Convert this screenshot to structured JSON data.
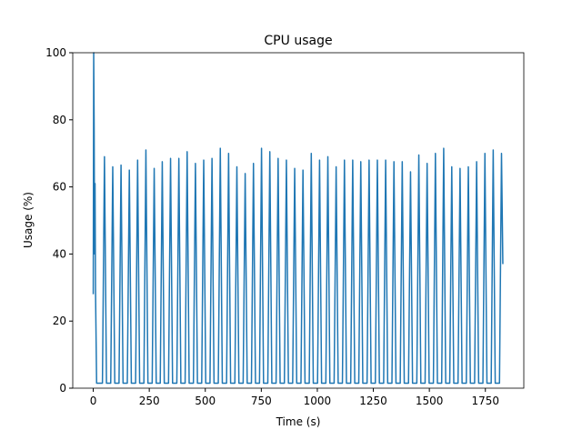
{
  "chart_data": {
    "type": "line",
    "title": "CPU usage",
    "x_label": "Time (s)",
    "y_label": "Usage (%)",
    "x": [
      0,
      2,
      4,
      6,
      8,
      10,
      15,
      41,
      50,
      59,
      78,
      87,
      96,
      115,
      124,
      133,
      152,
      161,
      170,
      189,
      198,
      207,
      226,
      235,
      244,
      263,
      272,
      281,
      299,
      308,
      317,
      336,
      345,
      354,
      373,
      382,
      391,
      410,
      419,
      428,
      447,
      456,
      465,
      484,
      493,
      502,
      521,
      530,
      539,
      558,
      567,
      576,
      595,
      604,
      613,
      632,
      641,
      650,
      669,
      678,
      687,
      706,
      715,
      724,
      742,
      751,
      760,
      779,
      788,
      797,
      816,
      825,
      834,
      853,
      862,
      871,
      890,
      899,
      908,
      927,
      936,
      945,
      964,
      973,
      982,
      1001,
      1010,
      1019,
      1038,
      1047,
      1056,
      1075,
      1084,
      1093,
      1112,
      1121,
      1130,
      1149,
      1158,
      1167,
      1185,
      1194,
      1203,
      1222,
      1231,
      1240,
      1259,
      1268,
      1277,
      1296,
      1305,
      1314,
      1333,
      1342,
      1351,
      1370,
      1379,
      1388,
      1407,
      1416,
      1425,
      1444,
      1453,
      1462,
      1481,
      1490,
      1499,
      1518,
      1527,
      1536,
      1555,
      1564,
      1573,
      1591,
      1600,
      1609,
      1628,
      1637,
      1646,
      1665,
      1674,
      1683,
      1702,
      1711,
      1720,
      1739,
      1748,
      1757,
      1776,
      1785,
      1794,
      1813,
      1822,
      1828
    ],
    "series": [
      {
        "name": "CPU",
        "color": "#1f77b4",
        "values": [
          28,
          100,
          78,
          40,
          61,
          30,
          1.5,
          1.5,
          69,
          1.5,
          1.5,
          66,
          1.5,
          1.5,
          66.5,
          1.5,
          1.5,
          65,
          1.5,
          1.5,
          68,
          1.5,
          1.5,
          71,
          1.5,
          1.5,
          65.5,
          1.5,
          1.5,
          67.5,
          1.5,
          1.5,
          68.5,
          1.5,
          1.5,
          68.5,
          1.5,
          1.5,
          70.5,
          1.5,
          1.5,
          67,
          1.5,
          1.5,
          68,
          1.5,
          1.5,
          68.5,
          1.5,
          1.5,
          71.5,
          1.5,
          1.5,
          70,
          1.5,
          1.5,
          66,
          1.5,
          1.5,
          64,
          1.5,
          1.5,
          67,
          1.5,
          1.5,
          71.5,
          1.5,
          1.5,
          70.5,
          1.5,
          1.5,
          68.5,
          1.5,
          1.5,
          68,
          1.5,
          1.5,
          65.5,
          1.5,
          1.5,
          65,
          1.5,
          1.5,
          70,
          1.5,
          1.5,
          68,
          1.5,
          1.5,
          69,
          1.5,
          1.5,
          66,
          1.5,
          1.5,
          68,
          1.5,
          1.5,
          68,
          1.5,
          1.5,
          67.5,
          1.5,
          1.5,
          68,
          1.5,
          1.5,
          68,
          1.5,
          1.5,
          68,
          1.5,
          1.5,
          67.5,
          1.5,
          1.5,
          67.5,
          1.5,
          1.5,
          64.5,
          1.5,
          1.5,
          69.5,
          1.5,
          1.5,
          67,
          1.5,
          1.5,
          70,
          1.5,
          1.5,
          71.5,
          1.5,
          1.5,
          66,
          1.5,
          1.5,
          65.5,
          1.5,
          1.5,
          66,
          1.5,
          1.5,
          67.5,
          1.5,
          1.5,
          70,
          1.5,
          1.5,
          71,
          1.5,
          1.5,
          70,
          37
        ]
      }
    ],
    "xlim": [
      -91.5,
      1921.5
    ],
    "ylim": [
      0,
      100
    ],
    "xticks": [
      0,
      250,
      500,
      750,
      1000,
      1250,
      1500,
      1750
    ],
    "yticks": [
      0,
      20,
      40,
      60,
      80,
      100
    ]
  }
}
